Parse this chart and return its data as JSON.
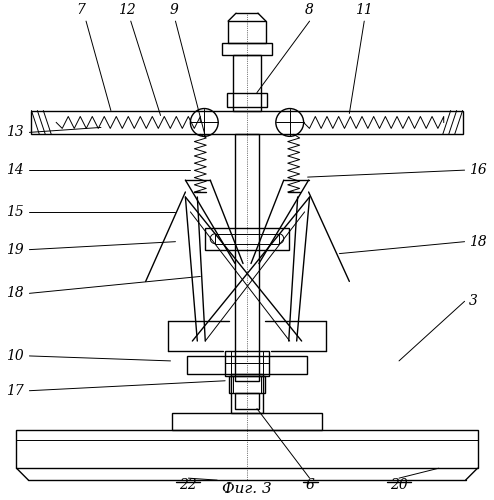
{
  "bg_color": "#ffffff",
  "fig_width": 4.94,
  "fig_height": 5.0,
  "dpi": 100
}
